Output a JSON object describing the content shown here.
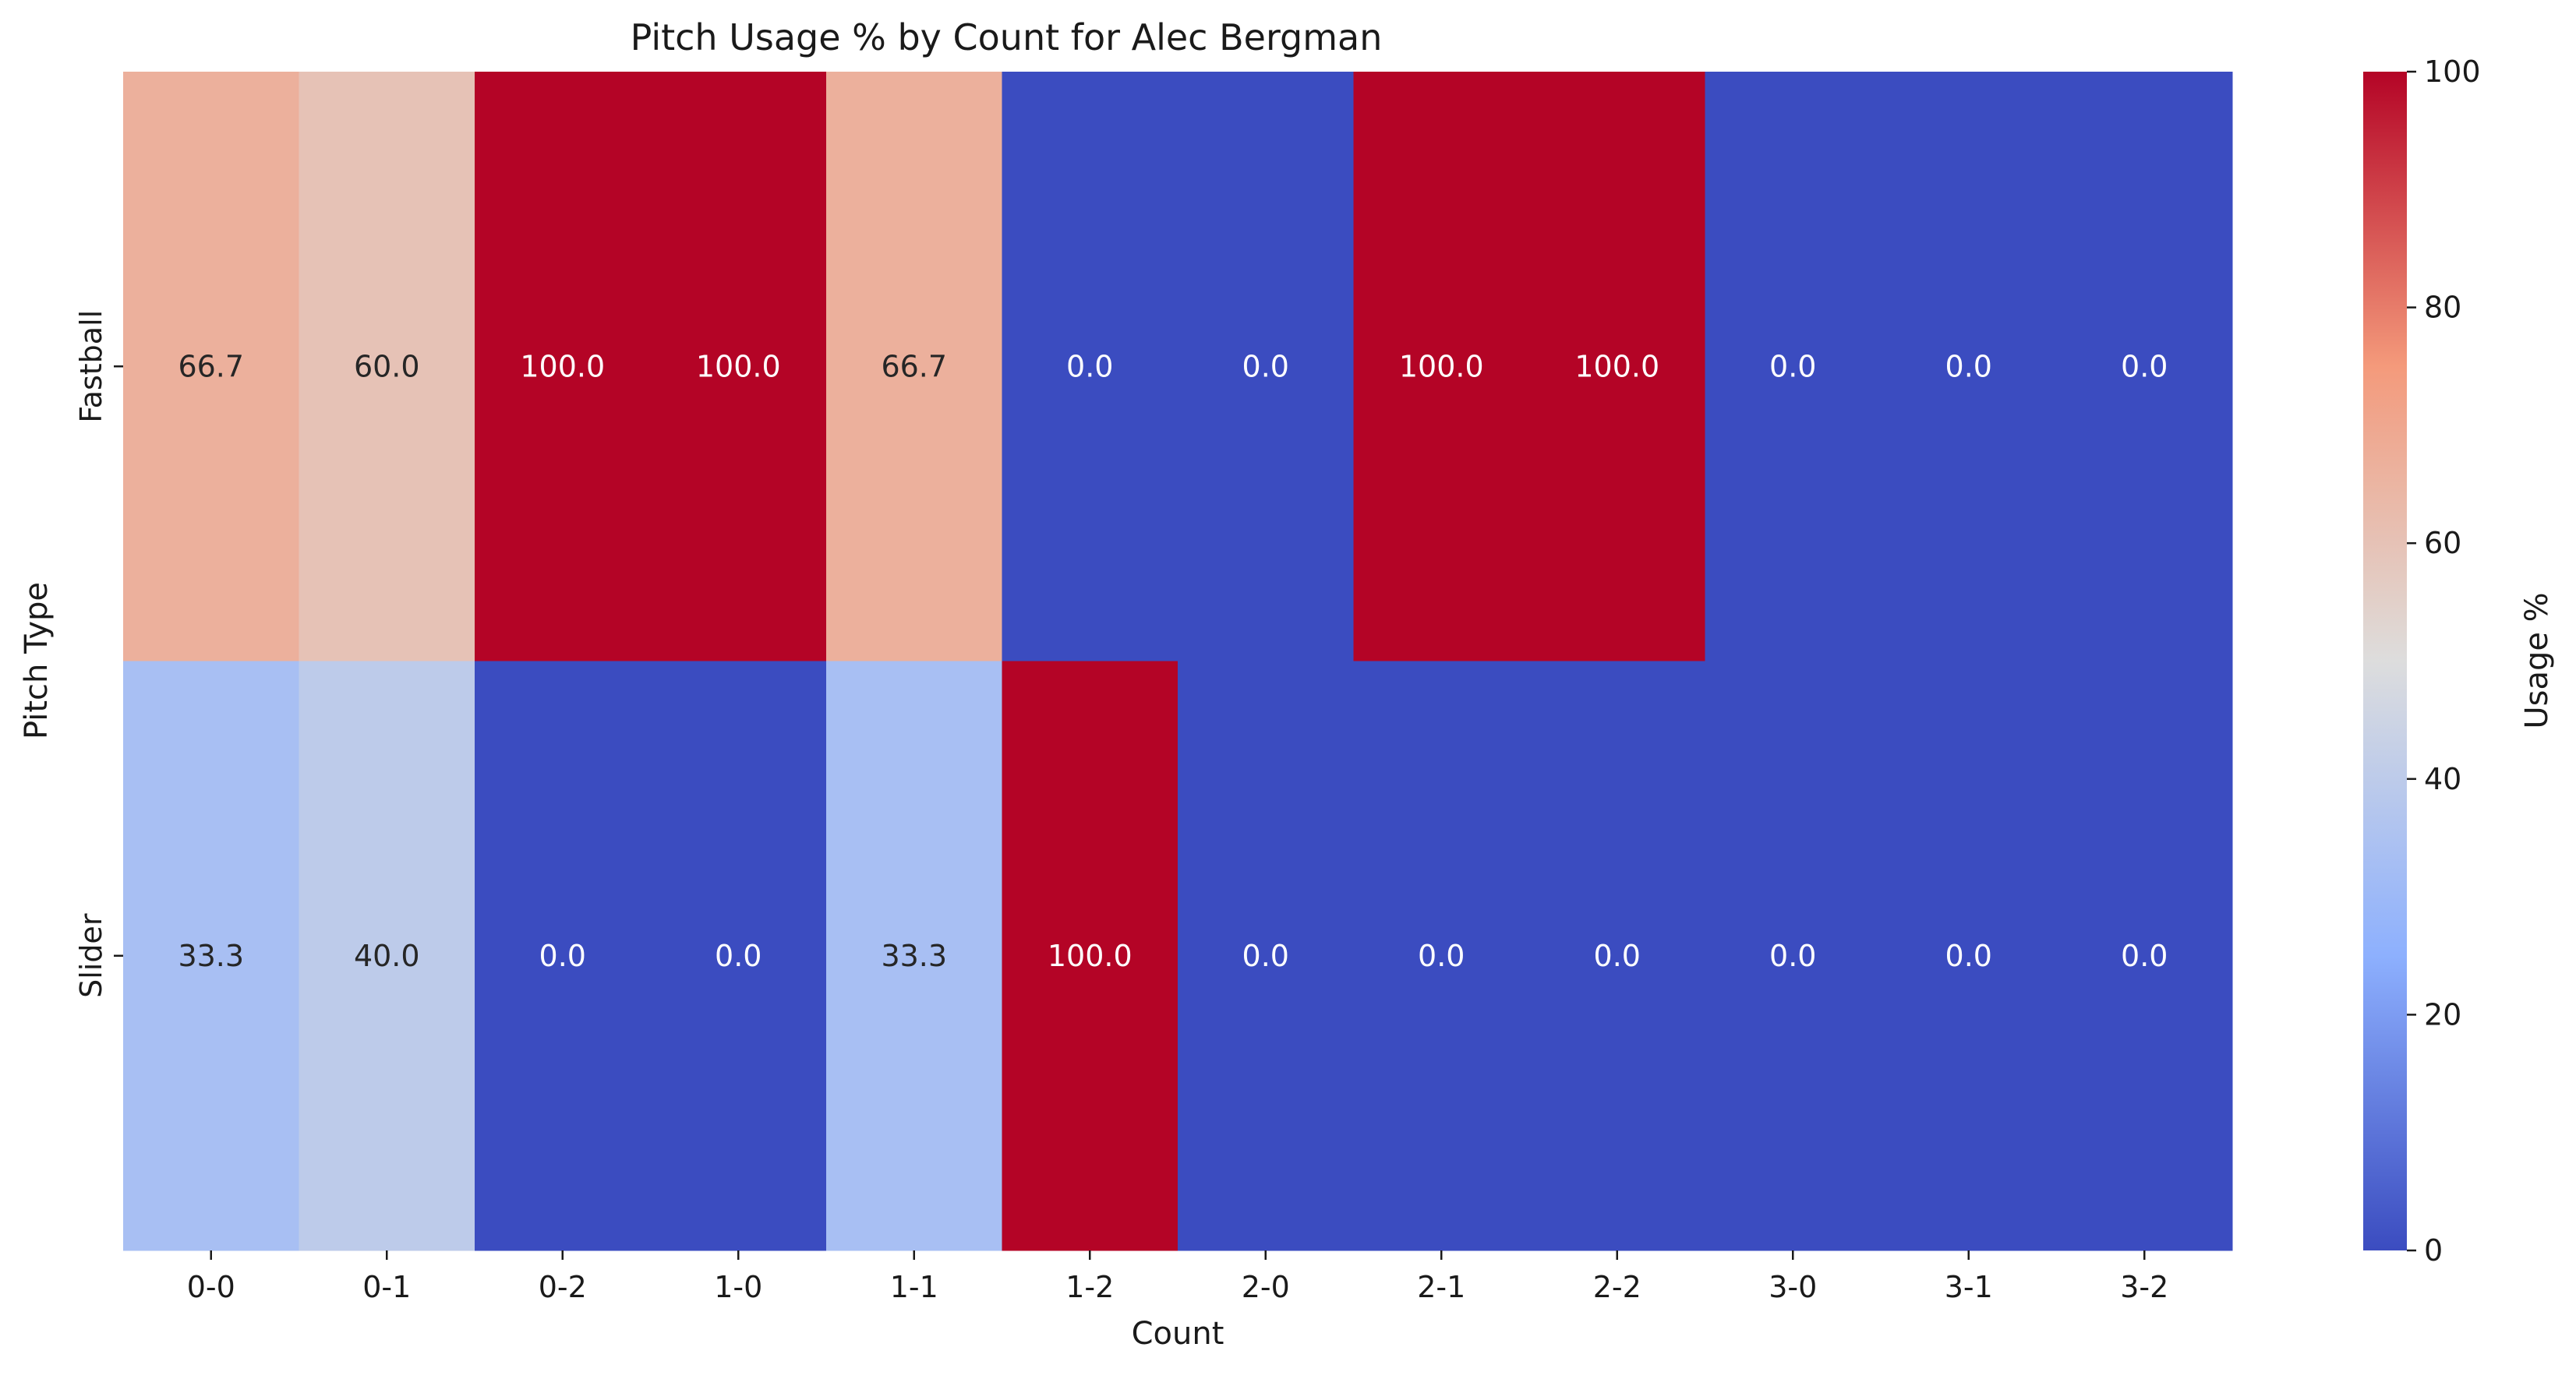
{
  "chart_data": {
    "type": "heatmap",
    "title": "Pitch Usage % by Count for Alec Bergman",
    "xlabel": "Count",
    "ylabel": "Pitch Type",
    "colorbar_label": "Usage %",
    "x_categories": [
      "0-0",
      "0-1",
      "0-2",
      "1-0",
      "1-1",
      "1-2",
      "2-0",
      "2-1",
      "2-2",
      "3-0",
      "3-1",
      "3-2"
    ],
    "y_categories": [
      "Fastball",
      "Slider"
    ],
    "values": [
      [
        66.7,
        60.0,
        100.0,
        100.0,
        66.7,
        0.0,
        0.0,
        100.0,
        100.0,
        0.0,
        0.0,
        0.0
      ],
      [
        33.3,
        40.0,
        0.0,
        0.0,
        33.3,
        100.0,
        0.0,
        0.0,
        0.0,
        0.0,
        0.0,
        0.0
      ]
    ],
    "cell_labels": [
      [
        "66.7",
        "60.0",
        "100.0",
        "100.0",
        "66.7",
        "0.0",
        "0.0",
        "100.0",
        "100.0",
        "0.0",
        "0.0",
        "0.0"
      ],
      [
        "33.3",
        "40.0",
        "0.0",
        "0.0",
        "33.3",
        "100.0",
        "0.0",
        "0.0",
        "0.0",
        "0.0",
        "0.0",
        "0.0"
      ]
    ],
    "colorscale": "coolwarm",
    "zlim": [
      0,
      100
    ],
    "colorbar_ticks": [
      "0",
      "20",
      "40",
      "60",
      "80",
      "100"
    ],
    "colorbar_tick_values": [
      0,
      20,
      40,
      60,
      80,
      100
    ],
    "grid": false
  }
}
